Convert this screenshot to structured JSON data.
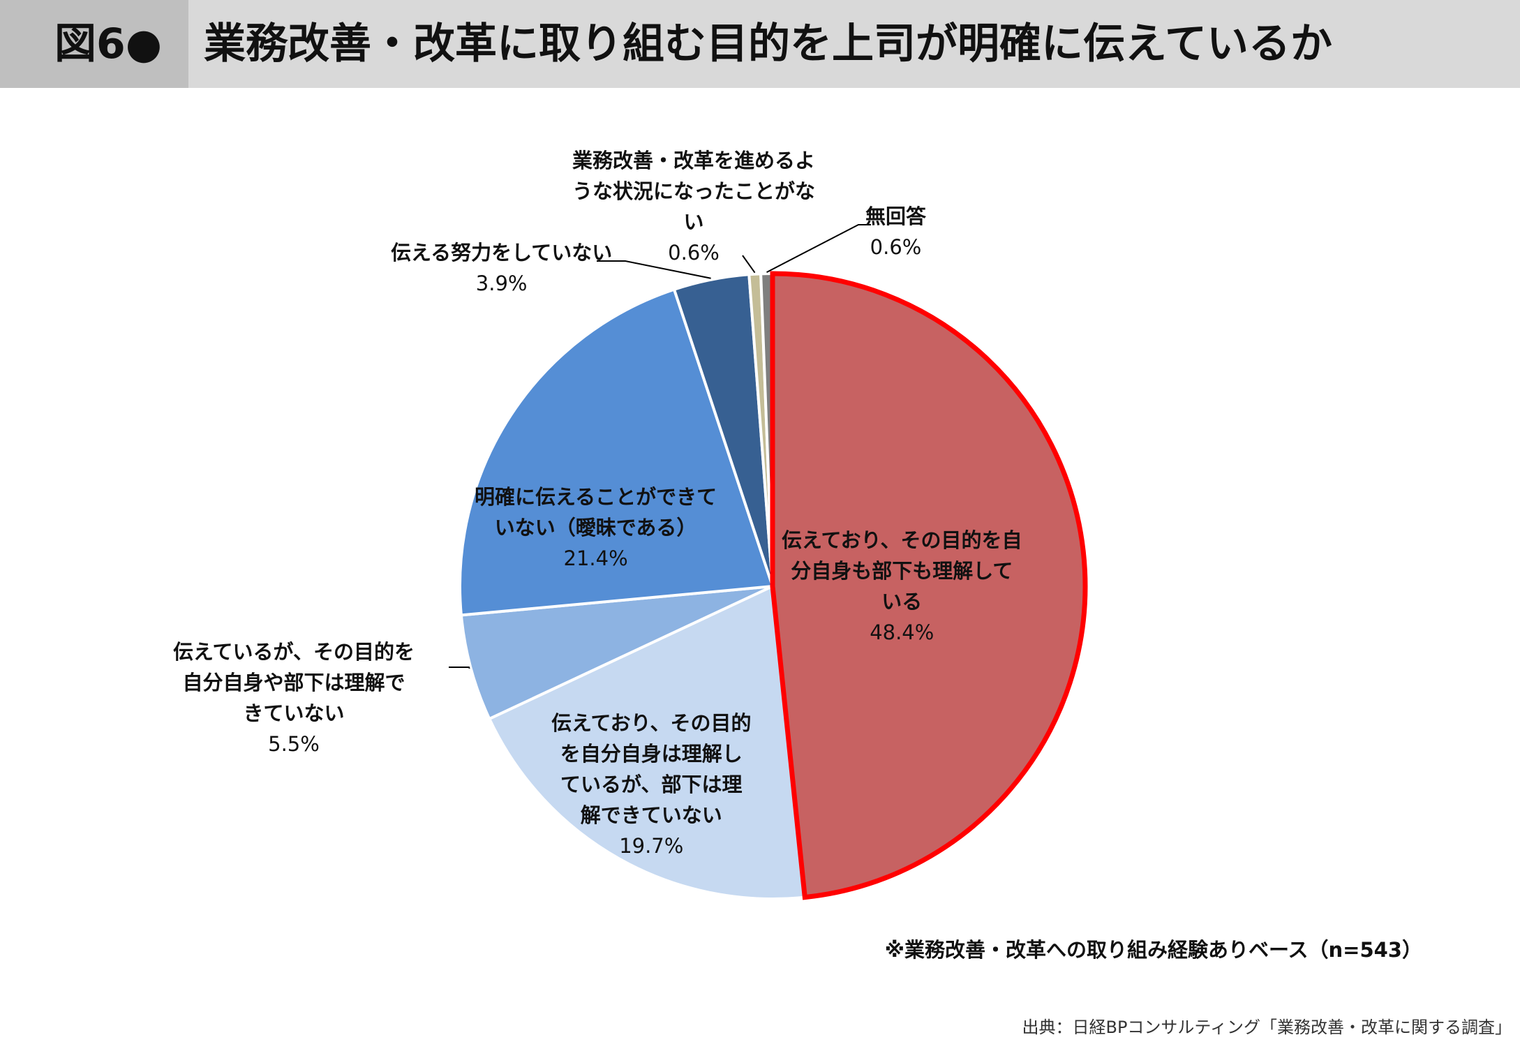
{
  "title": {
    "figure_label": "図6●",
    "text": "業務改善・改革に取り組む目的を上司が明確に伝えているか"
  },
  "chart_data": {
    "type": "pie",
    "start_angle_deg": 0,
    "direction": "clockwise",
    "slices": [
      {
        "label": "伝えており、その目的を自\n分自身も部下も理解して\nいる",
        "value": 48.4,
        "value_label": "48.4%",
        "color": "#c76262",
        "highlight": "#ff0000"
      },
      {
        "label": "伝えており、その目的\nを自分自身は理解し\nているが、部下は理\n解できていない",
        "value": 19.7,
        "value_label": "19.7%",
        "color": "#c6d9f1"
      },
      {
        "label": "伝えているが、その目的を\n自分自身や部下は理解で\nきていない",
        "value": 5.5,
        "value_label": "5.5%",
        "color": "#8db3e2"
      },
      {
        "label": "明確に伝えることができて\nいない（曖昧である）",
        "value": 21.4,
        "value_label": "21.4%",
        "color": "#558ed5"
      },
      {
        "label": "伝える努力をしていない",
        "value": 3.9,
        "value_label": "3.9%",
        "color": "#376092"
      },
      {
        "label": "業務改善・改革を進めるよ\nうな状況になったことがな\nい",
        "value": 0.6,
        "value_label": "0.6%",
        "color": "#c4bd97"
      },
      {
        "label": "無回答",
        "value": 0.6,
        "value_label": "0.6%",
        "color": "#7f7f7f"
      }
    ]
  },
  "notes": {
    "base": "※業務改善・改革への取り組み経験ありベース（n=543）",
    "source": "出典：日経BPコンサルティング「業務改善・改革に関する調査」"
  }
}
